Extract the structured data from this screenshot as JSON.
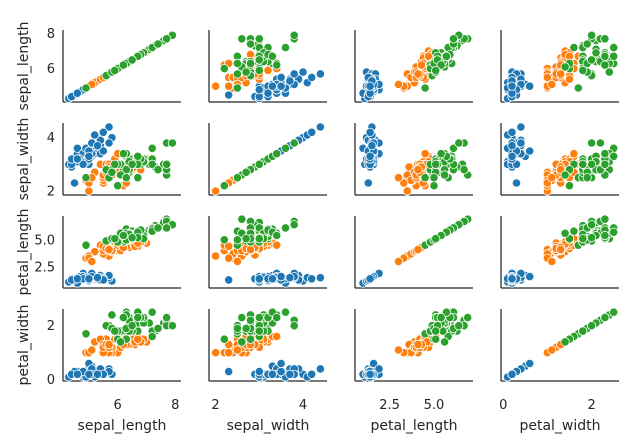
{
  "chart_data": {
    "type": "scatter",
    "kind": "pairplot",
    "variables": [
      "sepal_length",
      "sepal_width",
      "petal_length",
      "petal_width"
    ],
    "axis_ranges": {
      "sepal_length": [
        4.1,
        8.2
      ],
      "sepal_width": [
        1.85,
        4.55
      ],
      "petal_length": [
        0.55,
        7.2
      ],
      "petal_width": [
        -0.05,
        2.62
      ]
    },
    "ticks": {
      "sepal_length": [
        {
          "v": 6,
          "label": "6"
        },
        {
          "v": 8,
          "label": "8"
        }
      ],
      "sepal_width": [
        {
          "v": 2,
          "label": "2"
        },
        {
          "v": 4,
          "label": "4"
        }
      ],
      "petal_length": [
        {
          "v": 2.5,
          "label": "2.5"
        },
        {
          "v": 5.0,
          "label": "5.0"
        }
      ],
      "petal_width": [
        {
          "v": 0,
          "label": "0"
        },
        {
          "v": 2,
          "label": "2"
        }
      ]
    },
    "grid": false,
    "legend": "none",
    "series": [
      {
        "color": "#1f77b4",
        "points": [
          [
            5.1,
            3.5,
            1.4,
            0.2
          ],
          [
            4.9,
            3.0,
            1.4,
            0.2
          ],
          [
            4.7,
            3.2,
            1.3,
            0.2
          ],
          [
            4.6,
            3.1,
            1.5,
            0.2
          ],
          [
            5.0,
            3.6,
            1.4,
            0.2
          ],
          [
            5.4,
            3.9,
            1.7,
            0.4
          ],
          [
            4.6,
            3.4,
            1.4,
            0.3
          ],
          [
            5.0,
            3.4,
            1.5,
            0.2
          ],
          [
            4.4,
            2.9,
            1.4,
            0.2
          ],
          [
            4.9,
            3.1,
            1.5,
            0.1
          ],
          [
            5.4,
            3.7,
            1.5,
            0.2
          ],
          [
            4.8,
            3.4,
            1.6,
            0.2
          ],
          [
            4.8,
            3.0,
            1.4,
            0.1
          ],
          [
            4.3,
            3.0,
            1.1,
            0.1
          ],
          [
            5.8,
            4.0,
            1.2,
            0.2
          ],
          [
            5.7,
            4.4,
            1.5,
            0.4
          ],
          [
            5.4,
            3.9,
            1.3,
            0.4
          ],
          [
            5.1,
            3.5,
            1.4,
            0.3
          ],
          [
            5.7,
            3.8,
            1.7,
            0.3
          ],
          [
            5.1,
            3.8,
            1.5,
            0.3
          ],
          [
            5.4,
            3.4,
            1.7,
            0.2
          ],
          [
            5.1,
            3.7,
            1.5,
            0.4
          ],
          [
            4.6,
            3.6,
            1.0,
            0.2
          ],
          [
            5.1,
            3.3,
            1.7,
            0.5
          ],
          [
            4.8,
            3.4,
            1.9,
            0.2
          ],
          [
            5.0,
            3.0,
            1.6,
            0.2
          ],
          [
            5.0,
            3.4,
            1.6,
            0.4
          ],
          [
            5.2,
            3.5,
            1.5,
            0.2
          ],
          [
            5.2,
            3.4,
            1.4,
            0.2
          ],
          [
            4.7,
            3.2,
            1.6,
            0.2
          ],
          [
            4.8,
            3.1,
            1.6,
            0.2
          ],
          [
            5.4,
            3.4,
            1.5,
            0.4
          ],
          [
            5.2,
            4.1,
            1.5,
            0.1
          ],
          [
            5.5,
            4.2,
            1.4,
            0.2
          ],
          [
            4.9,
            3.1,
            1.5,
            0.2
          ],
          [
            5.0,
            3.2,
            1.2,
            0.2
          ],
          [
            5.5,
            3.5,
            1.3,
            0.2
          ],
          [
            4.9,
            3.6,
            1.4,
            0.1
          ],
          [
            4.4,
            3.0,
            1.3,
            0.2
          ],
          [
            5.1,
            3.4,
            1.5,
            0.2
          ],
          [
            5.0,
            3.5,
            1.3,
            0.3
          ],
          [
            4.5,
            2.3,
            1.3,
            0.3
          ],
          [
            4.4,
            3.2,
            1.3,
            0.2
          ],
          [
            5.0,
            3.5,
            1.6,
            0.6
          ],
          [
            5.1,
            3.8,
            1.9,
            0.4
          ],
          [
            4.8,
            3.0,
            1.4,
            0.3
          ],
          [
            5.1,
            3.8,
            1.6,
            0.2
          ],
          [
            4.6,
            3.2,
            1.4,
            0.2
          ],
          [
            5.3,
            3.7,
            1.5,
            0.2
          ],
          [
            5.0,
            3.3,
            1.4,
            0.2
          ]
        ]
      },
      {
        "color": "#ff7f0e",
        "points": [
          [
            7.0,
            3.2,
            4.7,
            1.4
          ],
          [
            6.4,
            3.2,
            4.5,
            1.5
          ],
          [
            6.9,
            3.1,
            4.9,
            1.5
          ],
          [
            5.5,
            2.3,
            4.0,
            1.3
          ],
          [
            6.5,
            2.8,
            4.6,
            1.5
          ],
          [
            5.7,
            2.8,
            4.5,
            1.3
          ],
          [
            6.3,
            3.3,
            4.7,
            1.6
          ],
          [
            4.9,
            2.4,
            3.3,
            1.0
          ],
          [
            6.6,
            2.9,
            4.6,
            1.3
          ],
          [
            5.2,
            2.7,
            3.9,
            1.4
          ],
          [
            5.0,
            2.0,
            3.5,
            1.0
          ],
          [
            5.9,
            3.0,
            4.2,
            1.5
          ],
          [
            6.0,
            2.2,
            4.0,
            1.0
          ],
          [
            6.1,
            2.9,
            4.7,
            1.4
          ],
          [
            5.6,
            2.9,
            3.6,
            1.3
          ],
          [
            6.7,
            3.1,
            4.4,
            1.4
          ],
          [
            5.6,
            3.0,
            4.5,
            1.5
          ],
          [
            5.8,
            2.7,
            4.1,
            1.0
          ],
          [
            6.2,
            2.2,
            4.5,
            1.5
          ],
          [
            5.6,
            2.5,
            3.9,
            1.1
          ],
          [
            5.9,
            3.2,
            4.8,
            1.8
          ],
          [
            6.1,
            2.8,
            4.0,
            1.3
          ],
          [
            6.3,
            2.5,
            4.9,
            1.5
          ],
          [
            6.1,
            2.8,
            4.7,
            1.2
          ],
          [
            6.4,
            2.9,
            4.3,
            1.3
          ],
          [
            6.6,
            3.0,
            4.4,
            1.4
          ],
          [
            6.8,
            2.8,
            4.8,
            1.4
          ],
          [
            6.7,
            3.0,
            5.0,
            1.7
          ],
          [
            6.0,
            2.9,
            4.5,
            1.5
          ],
          [
            5.7,
            2.6,
            3.5,
            1.0
          ],
          [
            5.5,
            2.4,
            3.8,
            1.1
          ],
          [
            5.5,
            2.4,
            3.7,
            1.0
          ],
          [
            5.8,
            2.7,
            3.9,
            1.2
          ],
          [
            6.0,
            2.7,
            5.1,
            1.6
          ],
          [
            5.4,
            3.0,
            4.5,
            1.5
          ],
          [
            6.0,
            3.4,
            4.5,
            1.6
          ],
          [
            6.7,
            3.1,
            4.7,
            1.5
          ],
          [
            6.3,
            2.3,
            4.4,
            1.3
          ],
          [
            5.6,
            3.0,
            4.1,
            1.3
          ],
          [
            5.5,
            2.5,
            4.0,
            1.3
          ],
          [
            5.5,
            2.6,
            4.4,
            1.2
          ],
          [
            6.1,
            3.0,
            4.6,
            1.4
          ],
          [
            5.8,
            2.6,
            4.0,
            1.2
          ],
          [
            5.0,
            2.3,
            3.3,
            1.0
          ],
          [
            5.6,
            2.7,
            4.2,
            1.3
          ],
          [
            5.7,
            3.0,
            4.2,
            1.2
          ],
          [
            5.7,
            2.9,
            4.2,
            1.3
          ],
          [
            6.2,
            2.9,
            4.3,
            1.3
          ],
          [
            5.1,
            2.5,
            3.0,
            1.1
          ],
          [
            5.7,
            2.8,
            4.1,
            1.3
          ]
        ]
      },
      {
        "color": "#2ca02c",
        "points": [
          [
            6.3,
            3.3,
            6.0,
            2.5
          ],
          [
            5.8,
            2.7,
            5.1,
            1.9
          ],
          [
            7.1,
            3.0,
            5.9,
            2.1
          ],
          [
            6.3,
            2.9,
            5.6,
            1.8
          ],
          [
            6.5,
            3.0,
            5.8,
            2.2
          ],
          [
            7.6,
            3.0,
            6.6,
            2.1
          ],
          [
            4.9,
            2.5,
            4.5,
            1.7
          ],
          [
            7.3,
            2.9,
            6.3,
            1.8
          ],
          [
            6.7,
            2.5,
            5.8,
            1.8
          ],
          [
            7.2,
            3.6,
            6.1,
            2.5
          ],
          [
            6.5,
            3.2,
            5.1,
            2.0
          ],
          [
            6.4,
            2.7,
            5.3,
            1.9
          ],
          [
            6.8,
            3.0,
            5.5,
            2.1
          ],
          [
            5.7,
            2.5,
            5.0,
            2.0
          ],
          [
            5.8,
            2.8,
            5.1,
            2.4
          ],
          [
            6.4,
            3.2,
            5.3,
            2.3
          ],
          [
            6.5,
            3.0,
            5.5,
            1.8
          ],
          [
            7.7,
            3.8,
            6.7,
            2.2
          ],
          [
            7.7,
            2.6,
            6.9,
            2.3
          ],
          [
            6.0,
            2.2,
            5.0,
            1.5
          ],
          [
            6.9,
            3.2,
            5.7,
            2.3
          ],
          [
            5.6,
            2.8,
            4.9,
            2.0
          ],
          [
            7.7,
            2.8,
            6.7,
            2.0
          ],
          [
            6.3,
            2.7,
            4.9,
            1.8
          ],
          [
            6.7,
            3.3,
            5.7,
            2.1
          ],
          [
            7.2,
            3.2,
            6.0,
            1.8
          ],
          [
            6.2,
            2.8,
            4.8,
            1.8
          ],
          [
            6.1,
            3.0,
            4.9,
            1.8
          ],
          [
            6.4,
            2.8,
            5.6,
            2.1
          ],
          [
            7.2,
            3.0,
            5.8,
            1.6
          ],
          [
            7.4,
            2.8,
            6.1,
            1.9
          ],
          [
            7.9,
            3.8,
            6.4,
            2.0
          ],
          [
            6.4,
            2.8,
            5.6,
            2.2
          ],
          [
            6.3,
            2.8,
            5.1,
            1.5
          ],
          [
            6.1,
            2.6,
            5.6,
            1.4
          ],
          [
            7.7,
            3.0,
            6.1,
            2.3
          ],
          [
            6.3,
            3.4,
            5.6,
            2.4
          ],
          [
            6.4,
            3.1,
            5.5,
            1.8
          ],
          [
            6.0,
            3.0,
            4.8,
            1.8
          ],
          [
            6.9,
            3.1,
            5.4,
            2.1
          ],
          [
            6.7,
            3.1,
            5.6,
            2.4
          ],
          [
            6.9,
            3.1,
            5.1,
            2.3
          ],
          [
            5.8,
            2.7,
            5.1,
            1.9
          ],
          [
            6.8,
            3.2,
            5.9,
            2.3
          ],
          [
            6.7,
            3.3,
            5.7,
            2.5
          ],
          [
            6.7,
            3.0,
            5.2,
            2.3
          ],
          [
            6.3,
            2.5,
            5.0,
            1.9
          ],
          [
            6.5,
            3.0,
            5.2,
            2.0
          ],
          [
            6.2,
            3.4,
            5.4,
            2.3
          ],
          [
            5.9,
            3.0,
            5.1,
            1.8
          ]
        ]
      }
    ]
  }
}
